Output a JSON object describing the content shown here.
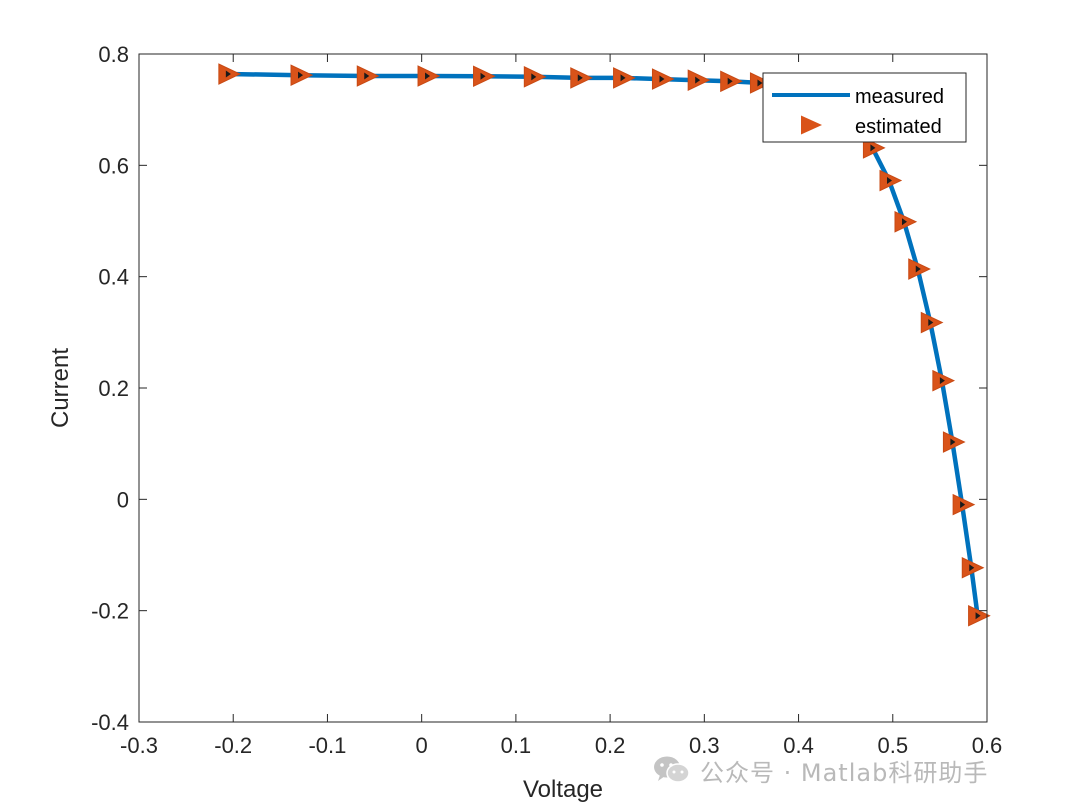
{
  "chart_data": {
    "type": "line",
    "xlabel": "Voltage",
    "ylabel": "Current",
    "xlim": [
      -0.3,
      0.6
    ],
    "ylim": [
      -0.4,
      0.8
    ],
    "xticks": [
      -0.3,
      -0.2,
      -0.1,
      0,
      0.1,
      0.2,
      0.3,
      0.4,
      0.5,
      0.6
    ],
    "yticks": [
      -0.4,
      -0.2,
      0,
      0.2,
      0.4,
      0.6,
      0.8
    ],
    "xtick_labels": [
      "-0.3",
      "-0.2",
      "-0.1",
      "0",
      "0.1",
      "0.2",
      "0.3",
      "0.4",
      "0.5",
      "0.6"
    ],
    "ytick_labels": [
      "-0.4",
      "-0.2",
      "0",
      "0.2",
      "0.4",
      "0.6",
      "0.8"
    ],
    "grid": false,
    "legend_position": "top-right",
    "series": [
      {
        "name": "measured",
        "style": "line",
        "color": "#0072BD",
        "x": [
          -0.2057,
          -0.1291,
          -0.0588,
          0.0057,
          0.0646,
          0.1185,
          0.1678,
          0.2132,
          0.2545,
          0.2924,
          0.3269,
          0.3585,
          0.3873,
          0.4137,
          0.4373,
          0.459,
          0.4784,
          0.496,
          0.5119,
          0.5265,
          0.5398,
          0.5521,
          0.5633,
          0.5736,
          0.5833,
          0.59
        ],
        "y": [
          0.764,
          0.762,
          0.7605,
          0.7605,
          0.76,
          0.759,
          0.757,
          0.757,
          0.755,
          0.753,
          0.751,
          0.748,
          0.7425,
          0.7327,
          0.7072,
          0.6748,
          0.6313,
          0.5727,
          0.4986,
          0.4137,
          0.3176,
          0.2132,
          0.1029,
          -0.0095,
          -0.1229,
          -0.2091
        ]
      },
      {
        "name": "estimated",
        "style": "marker",
        "color": "#D95319",
        "marker": "triangle-right",
        "x": [
          -0.2057,
          -0.1291,
          -0.0588,
          0.0057,
          0.0646,
          0.1185,
          0.1678,
          0.2132,
          0.2545,
          0.2924,
          0.3269,
          0.3585,
          0.3873,
          0.4137,
          0.4373,
          0.459,
          0.4784,
          0.496,
          0.5119,
          0.5265,
          0.5398,
          0.5521,
          0.5633,
          0.5736,
          0.5833,
          0.59
        ],
        "y": [
          0.764,
          0.762,
          0.7605,
          0.7605,
          0.76,
          0.759,
          0.757,
          0.757,
          0.755,
          0.753,
          0.751,
          0.748,
          0.7425,
          0.7327,
          0.7072,
          0.6748,
          0.6313,
          0.5727,
          0.4986,
          0.4137,
          0.3176,
          0.2132,
          0.1029,
          -0.0095,
          -0.1229,
          -0.2091
        ]
      }
    ]
  },
  "legend": {
    "measured_label": "measured",
    "estimated_label": "estimated"
  },
  "watermark": {
    "text": "公众号 · Matlab科研助手",
    "icon": "wechat-icon"
  }
}
